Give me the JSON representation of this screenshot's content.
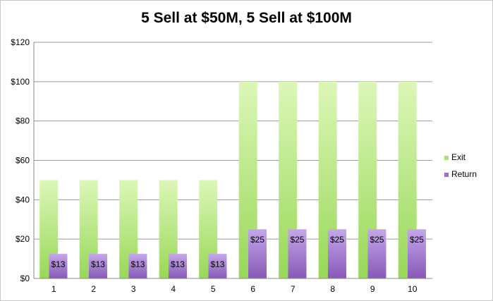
{
  "chart_data": {
    "type": "bar",
    "title": "5 Sell at $50M, 5 Sell at $100M",
    "categories": [
      "1",
      "2",
      "3",
      "4",
      "5",
      "6",
      "7",
      "8",
      "9",
      "10"
    ],
    "series": [
      {
        "name": "Exit",
        "values": [
          50,
          50,
          50,
          50,
          50,
          100,
          100,
          100,
          100,
          100
        ],
        "color": "#a8e070"
      },
      {
        "name": "Return",
        "values": [
          12.5,
          12.5,
          12.5,
          12.5,
          12.5,
          25,
          25,
          25,
          25,
          25
        ],
        "color": "#9870c8"
      }
    ],
    "data_labels": {
      "Return": [
        "$13",
        "$13",
        "$13",
        "$13",
        "$13",
        "$25",
        "$25",
        "$25",
        "$25",
        "$25"
      ]
    },
    "ylim": [
      0,
      120
    ],
    "yticks": [
      0,
      20,
      40,
      60,
      80,
      100,
      120
    ],
    "ytick_labels": [
      "$0",
      "$20",
      "$40",
      "$60",
      "$80",
      "$100",
      "$120"
    ],
    "grid": true,
    "legend_position": "right"
  }
}
